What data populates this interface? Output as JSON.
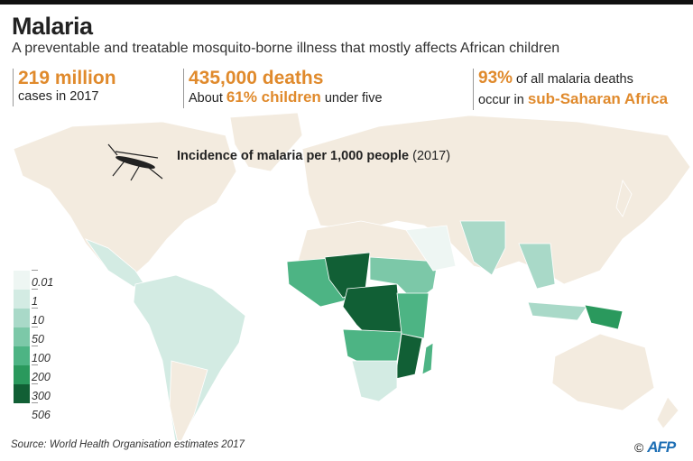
{
  "header": {
    "title": "Malaria",
    "subtitle": "A preventable and treatable mosquito-borne illness that mostly affects African children"
  },
  "stats": [
    {
      "headline": "219 million",
      "text": "cases in 2017"
    },
    {
      "headline": "435,000 deaths",
      "pre": "About ",
      "highlight": "61% children",
      "post": " under five"
    },
    {
      "highlight_pct": "93%",
      "text1": " of all malaria deaths",
      "text2": "occur in ",
      "highlight": "sub-Saharan Africa"
    }
  ],
  "map": {
    "title": "Incidence of malaria per 1,000 people",
    "year": "(2017)",
    "land_color": "#f3ebdf",
    "icon": "mosquito-icon"
  },
  "legend": {
    "labels": [
      "0.01",
      "1",
      "10",
      "50",
      "100",
      "200",
      "300",
      "506"
    ],
    "colors": [
      "#eef6f3",
      "#d3ebe3",
      "#a9d9c8",
      "#7cc8a8",
      "#4db484",
      "#2a995d",
      "#115f35"
    ]
  },
  "footer": {
    "source": "Source: World Health Organisation estimates 2017",
    "copyright": "©",
    "agency": "AFP"
  }
}
